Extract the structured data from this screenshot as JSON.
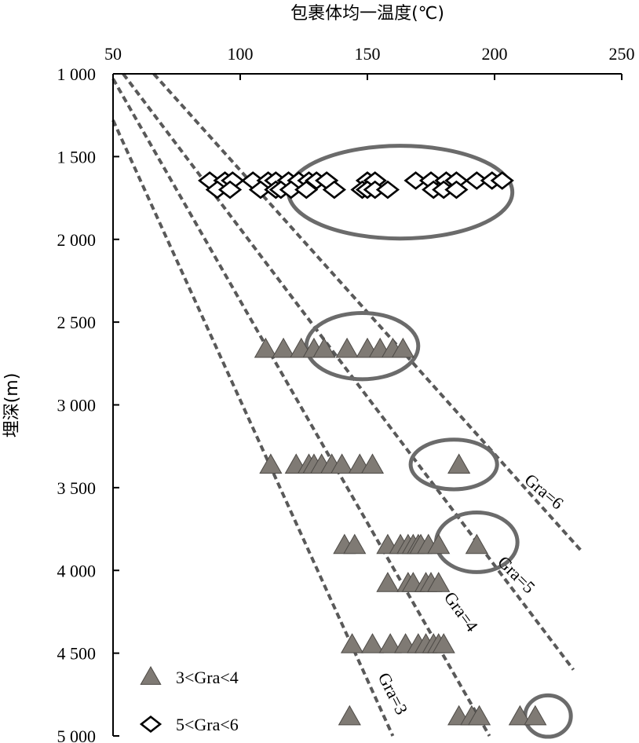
{
  "chart_data": {
    "type": "scatter",
    "xlabel": "包裹体均一温度(℃)",
    "ylabel": "埋深(m)",
    "xlim": [
      50,
      250
    ],
    "ylim": [
      1000,
      5000
    ],
    "y_inverted": true,
    "x_axis_position": "top",
    "xticks": [
      50,
      100,
      150,
      200,
      250
    ],
    "xtick_labels": [
      "50",
      "100",
      "150",
      "200",
      "250"
    ],
    "yticks": [
      1000,
      1500,
      2000,
      2500,
      3000,
      3500,
      4000,
      4500,
      5000
    ],
    "ytick_labels": [
      "1 000",
      "1 500",
      "2 000",
      "2 500",
      "3 000",
      "3 500",
      "4 000",
      "4 500",
      "5 000"
    ],
    "legend_position": "bottom-left",
    "series": [
      {
        "name": "3<Gra<4",
        "marker": "triangle",
        "color": "#7f7a74",
        "points": [
          [
            110,
            2665
          ],
          [
            117,
            2665
          ],
          [
            124,
            2665
          ],
          [
            129,
            2665
          ],
          [
            133,
            2665
          ],
          [
            142,
            2665
          ],
          [
            150,
            2665
          ],
          [
            155,
            2665
          ],
          [
            160,
            2665
          ],
          [
            164,
            2665
          ],
          [
            112,
            3365
          ],
          [
            122,
            3365
          ],
          [
            127,
            3365
          ],
          [
            129,
            3365
          ],
          [
            132,
            3365
          ],
          [
            136,
            3365
          ],
          [
            140,
            3365
          ],
          [
            147,
            3365
          ],
          [
            152,
            3365
          ],
          [
            186,
            3365
          ],
          [
            141,
            3850
          ],
          [
            145,
            3850
          ],
          [
            158,
            3850
          ],
          [
            163,
            3850
          ],
          [
            166,
            3850
          ],
          [
            168,
            3850
          ],
          [
            170,
            3850
          ],
          [
            171,
            3850
          ],
          [
            174,
            3850
          ],
          [
            178,
            3850
          ],
          [
            193,
            3850
          ],
          [
            158,
            4080
          ],
          [
            166,
            4080
          ],
          [
            168,
            4080
          ],
          [
            173,
            4080
          ],
          [
            175,
            4080
          ],
          [
            178,
            4080
          ],
          [
            144,
            4450
          ],
          [
            152,
            4450
          ],
          [
            159,
            4450
          ],
          [
            165,
            4450
          ],
          [
            170,
            4450
          ],
          [
            173,
            4450
          ],
          [
            176,
            4450
          ],
          [
            178,
            4450
          ],
          [
            180,
            4450
          ],
          [
            143,
            4885
          ],
          [
            186,
            4885
          ],
          [
            191,
            4885
          ],
          [
            194,
            4885
          ],
          [
            210,
            4885
          ],
          [
            216,
            4885
          ]
        ]
      },
      {
        "name": "5<Gra<6",
        "marker": "diamond",
        "color": "#ffffff",
        "points": [
          [
            88,
            1645
          ],
          [
            94,
            1645
          ],
          [
            97,
            1645
          ],
          [
            105,
            1645
          ],
          [
            111,
            1645
          ],
          [
            114,
            1645
          ],
          [
            119,
            1645
          ],
          [
            123,
            1645
          ],
          [
            127,
            1645
          ],
          [
            130,
            1645
          ],
          [
            134,
            1645
          ],
          [
            150,
            1645
          ],
          [
            153,
            1645
          ],
          [
            169,
            1645
          ],
          [
            175,
            1645
          ],
          [
            181,
            1645
          ],
          [
            185,
            1645
          ],
          [
            193,
            1645
          ],
          [
            199,
            1645
          ],
          [
            203,
            1645
          ],
          [
            91,
            1700
          ],
          [
            96,
            1700
          ],
          [
            108,
            1700
          ],
          [
            114,
            1700
          ],
          [
            116,
            1700
          ],
          [
            120,
            1700
          ],
          [
            126,
            1700
          ],
          [
            137,
            1700
          ],
          [
            148,
            1700
          ],
          [
            150,
            1700
          ],
          [
            153,
            1700
          ],
          [
            158,
            1700
          ],
          [
            176,
            1700
          ],
          [
            180,
            1700
          ],
          [
            185,
            1700
          ]
        ]
      }
    ],
    "gradient_lines": [
      {
        "label": "Gra=3",
        "from": [
          50,
          1280
        ],
        "to": [
          160,
          5000
        ]
      },
      {
        "label": "Gra=4",
        "from": [
          50,
          1030
        ],
        "to": [
          198,
          5000
        ]
      },
      {
        "label": "Gra=5",
        "from": [
          54,
          1000
        ],
        "to": [
          231,
          4600
        ]
      },
      {
        "label": "Gra=6",
        "from": [
          66,
          1000
        ],
        "to": [
          234,
          3880
        ]
      }
    ],
    "line_labels": [
      {
        "label": "Gra=3",
        "x": 158,
        "y": 4760,
        "angle": 63
      },
      {
        "label": "Gra=4",
        "x": 185,
        "y": 4270,
        "angle": 54
      },
      {
        "label": "Gra=5",
        "x": 207,
        "y": 4050,
        "angle": 45
      },
      {
        "label": "Gra=6",
        "x": 218,
        "y": 3550,
        "angle": 40
      }
    ],
    "highlight_ellipses": [
      {
        "cx": 163,
        "cy": 1715,
        "rx": 44,
        "ry": 280
      },
      {
        "cx": 148,
        "cy": 2645,
        "rx": 22,
        "ry": 200
      },
      {
        "cx": 184,
        "cy": 3360,
        "rx": 17,
        "ry": 150
      },
      {
        "cx": 193,
        "cy": 3830,
        "rx": 16,
        "ry": 180
      },
      {
        "cx": 221,
        "cy": 4880,
        "rx": 9,
        "ry": 125
      }
    ],
    "legend": [
      {
        "label": "3<Gra<4",
        "marker": "triangle"
      },
      {
        "label": "5<Gra<6",
        "marker": "diamond"
      }
    ]
  }
}
